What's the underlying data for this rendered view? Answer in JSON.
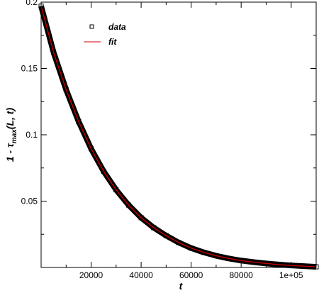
{
  "chart_data": {
    "type": "scatter",
    "xlabel": "t",
    "ylabel_main": "1 - τ",
    "ylabel_sub": "max",
    "ylabel_tail": "(L, t)",
    "xlim": [
      0,
      110000
    ],
    "ylim": [
      0,
      0.2
    ],
    "x_ticks": [
      {
        "value": 20000,
        "label": "20000"
      },
      {
        "value": 40000,
        "label": "40000"
      },
      {
        "value": 60000,
        "label": "60000"
      },
      {
        "value": 80000,
        "label": "80000"
      },
      {
        "value": 100000,
        "label": "1e+05"
      }
    ],
    "y_ticks": [
      {
        "value": 0.05,
        "label": "0.05"
      },
      {
        "value": 0.1,
        "label": "0.1"
      },
      {
        "value": 0.15,
        "label": "0.15"
      },
      {
        "value": 0.2,
        "label": "0.2"
      }
    ],
    "legend": [
      {
        "label": "data",
        "marker": "square-open",
        "color": "#000000"
      },
      {
        "label": "fit",
        "marker": "line",
        "color": "#d40000"
      }
    ],
    "legend_position": "top-left",
    "series": [
      {
        "name": "data",
        "style": "square-markers",
        "color": "#000000",
        "x": [
          0,
          5000,
          10000,
          15000,
          20000,
          25000,
          30000,
          35000,
          40000,
          45000,
          50000,
          55000,
          60000,
          65000,
          70000,
          75000,
          80000,
          85000,
          90000,
          95000,
          100000,
          105000,
          110000
        ],
        "y": [
          0.197,
          0.162,
          0.134,
          0.11,
          0.0895,
          0.0725,
          0.0585,
          0.047,
          0.0375,
          0.03,
          0.024,
          0.0188,
          0.0146,
          0.0114,
          0.0088,
          0.0068,
          0.0052,
          0.004,
          0.003,
          0.0022,
          0.0015,
          0.001,
          0.0005
        ]
      },
      {
        "name": "fit",
        "style": "line",
        "color": "#d40000",
        "x": [
          0,
          5000,
          10000,
          15000,
          20000,
          25000,
          30000,
          35000,
          40000,
          45000,
          50000,
          55000,
          60000,
          65000,
          70000,
          75000,
          80000,
          85000,
          90000,
          95000,
          100000,
          105000,
          110000
        ],
        "y": [
          0.197,
          0.162,
          0.134,
          0.11,
          0.0895,
          0.0725,
          0.0585,
          0.047,
          0.0375,
          0.03,
          0.024,
          0.0188,
          0.0146,
          0.0114,
          0.0088,
          0.0068,
          0.0052,
          0.004,
          0.003,
          0.0022,
          0.0015,
          0.001,
          0.0005
        ]
      }
    ]
  }
}
